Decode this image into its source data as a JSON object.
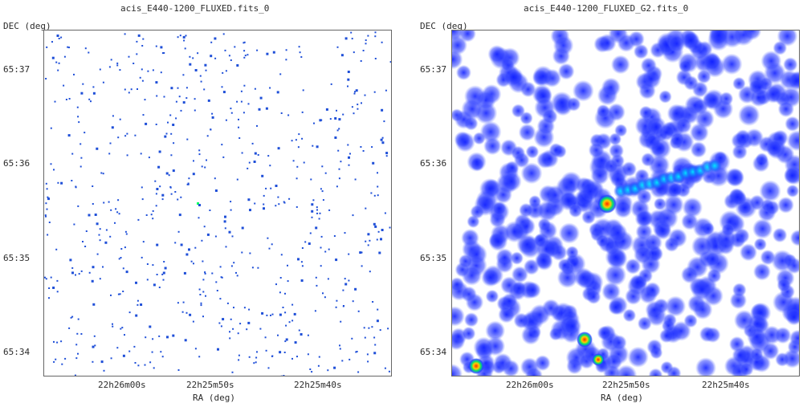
{
  "panels": [
    {
      "title": "acis_E440-1200_FLUXED.fits_0",
      "ylabel": "DEC (deg)",
      "xlabel": "RA (deg)",
      "yticks": [
        "65:37",
        "65:36",
        "65:35",
        "65:34"
      ],
      "xticks": [
        "22h26m00s",
        "22h25m50s",
        "22h25m40s"
      ],
      "style": "sparse"
    },
    {
      "title": "acis_E440-1200_FLUXED_G2.fits_0",
      "ylabel": "DEC (deg)",
      "xlabel": "RA (deg)",
      "yticks": [
        "65:37",
        "65:36",
        "65:35",
        "65:34"
      ],
      "xticks": [
        "22h26m00s",
        "22h25m50s",
        "22h25m40s"
      ],
      "style": "smoothed"
    }
  ],
  "colors": {
    "event": "#1f4fd8",
    "glow": "#2233ff",
    "bright": "#00d0ff",
    "hot": "#ff2a00",
    "mid": "#00ff66"
  }
}
